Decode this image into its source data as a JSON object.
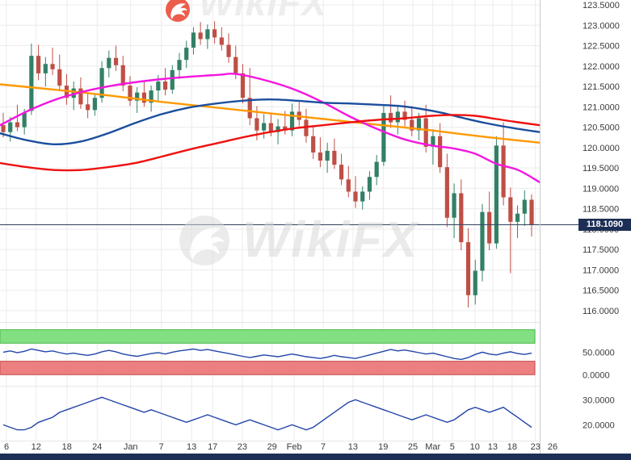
{
  "watermark": {
    "brand": "WikiFX",
    "top_text": "WikiFX",
    "logo_color_top": "#e8432e",
    "logo_color_center": "#d9d9d9"
  },
  "current_price": {
    "value": "118.1090",
    "price": 118.109,
    "bg": "#1d2f55",
    "line_color": "#3a4a66"
  },
  "chrome": {
    "bottom_bar_color": "#1d2f55",
    "grid_color": "#ececec",
    "axis_text_color": "#3a3a3a",
    "axis_border_color": "#c9c9c9"
  },
  "price_axis": {
    "labels": [
      "123.5000",
      "123.0000",
      "122.5000",
      "122.0000",
      "121.5000",
      "121.0000",
      "120.5000",
      "120.0000",
      "119.5000",
      "119.0000",
      "118.5000",
      "118.0000",
      "117.5000",
      "117.0000",
      "116.5000",
      "116.0000"
    ]
  },
  "x_axis": {
    "labels": [
      {
        "t": "6",
        "f": 0.012
      },
      {
        "t": "12",
        "f": 0.067
      },
      {
        "t": "18",
        "f": 0.124
      },
      {
        "t": "24",
        "f": 0.18
      },
      {
        "t": "Jan",
        "f": 0.242
      },
      {
        "t": "7",
        "f": 0.299
      },
      {
        "t": "13",
        "f": 0.355
      },
      {
        "t": "17",
        "f": 0.394
      },
      {
        "t": "23",
        "f": 0.449
      },
      {
        "t": "29",
        "f": 0.504
      },
      {
        "t": "Feb",
        "f": 0.545
      },
      {
        "t": "7",
        "f": 0.599
      },
      {
        "t": "13",
        "f": 0.654
      },
      {
        "t": "19",
        "f": 0.71
      },
      {
        "t": "25",
        "f": 0.765
      },
      {
        "t": "Mar",
        "f": 0.802
      },
      {
        "t": "5",
        "f": 0.838
      },
      {
        "t": "10",
        "f": 0.88
      },
      {
        "t": "13",
        "f": 0.913
      },
      {
        "t": "18",
        "f": 0.949
      },
      {
        "t": "23",
        "f": 0.992
      },
      {
        "t": "26",
        "f": 1.024
      }
    ]
  },
  "chart_data": [
    {
      "type": "candlestick",
      "title": "",
      "ylim": [
        116.0,
        123.5
      ],
      "grid_step": 0.5,
      "up_color": "#338066",
      "down_color": "#bf4f45",
      "last_price": 118.109,
      "candles": [
        [
          120.55,
          120.85,
          120.25,
          120.38
        ],
        [
          120.38,
          120.75,
          120.15,
          120.62
        ],
        [
          120.62,
          121.05,
          120.4,
          120.5
        ],
        [
          120.5,
          120.95,
          120.32,
          120.85
        ],
        [
          120.9,
          122.55,
          120.8,
          122.25
        ],
        [
          122.25,
          122.52,
          121.65,
          121.82
        ],
        [
          121.82,
          122.22,
          121.5,
          122.05
        ],
        [
          122.05,
          122.45,
          121.78,
          121.92
        ],
        [
          121.92,
          122.28,
          121.38,
          121.52
        ],
        [
          121.52,
          121.8,
          121.05,
          121.22
        ],
        [
          121.22,
          121.62,
          120.92,
          121.45
        ],
        [
          121.45,
          121.72,
          120.95,
          121.06
        ],
        [
          121.06,
          121.35,
          120.72,
          120.92
        ],
        [
          120.92,
          121.32,
          120.78,
          121.22
        ],
        [
          121.22,
          122.12,
          121.1,
          121.95
        ],
        [
          121.95,
          122.38,
          121.72,
          122.2
        ],
        [
          122.2,
          122.5,
          121.88,
          122.02
        ],
        [
          122.02,
          122.25,
          121.38,
          121.52
        ],
        [
          121.52,
          121.75,
          121.02,
          121.15
        ],
        [
          121.15,
          121.48,
          120.85,
          121.35
        ],
        [
          121.35,
          121.65,
          121.0,
          121.1
        ],
        [
          121.1,
          121.52,
          120.88,
          121.4
        ],
        [
          121.4,
          121.78,
          121.15,
          121.62
        ],
        [
          121.62,
          121.95,
          121.28,
          121.42
        ],
        [
          121.42,
          122.02,
          121.32,
          121.9
        ],
        [
          121.9,
          122.32,
          121.68,
          122.15
        ],
        [
          122.15,
          122.62,
          121.95,
          122.45
        ],
        [
          122.45,
          122.95,
          122.28,
          122.82
        ],
        [
          122.82,
          123.08,
          122.52,
          122.66
        ],
        [
          122.66,
          123.02,
          122.42,
          122.9
        ],
        [
          122.9,
          123.1,
          122.55,
          122.7
        ],
        [
          122.7,
          122.95,
          122.38,
          122.52
        ],
        [
          122.52,
          122.8,
          122.08,
          122.22
        ],
        [
          122.22,
          122.5,
          121.68,
          121.82
        ],
        [
          121.82,
          122.05,
          121.08,
          121.22
        ],
        [
          121.22,
          121.95,
          120.55,
          120.72
        ],
        [
          120.72,
          121.02,
          120.18,
          120.42
        ],
        [
          120.42,
          120.82,
          120.22,
          120.6
        ],
        [
          120.6,
          120.85,
          120.28,
          120.38
        ],
        [
          120.38,
          120.7,
          120.08,
          120.52
        ],
        [
          120.52,
          120.9,
          120.32,
          120.42
        ],
        [
          120.42,
          121.08,
          120.28,
          120.88
        ],
        [
          120.88,
          121.15,
          120.52,
          120.68
        ],
        [
          120.68,
          120.95,
          120.12,
          120.28
        ],
        [
          120.28,
          120.55,
          119.72,
          119.88
        ],
        [
          119.88,
          120.25,
          119.52,
          119.68
        ],
        [
          119.68,
          120.12,
          119.38,
          119.92
        ],
        [
          119.92,
          120.22,
          119.48,
          119.58
        ],
        [
          119.58,
          119.85,
          119.08,
          119.22
        ],
        [
          119.22,
          119.55,
          118.78,
          118.92
        ],
        [
          118.92,
          119.3,
          118.52,
          118.68
        ],
        [
          118.68,
          119.05,
          118.48,
          118.92
        ],
        [
          118.92,
          119.42,
          118.72,
          119.28
        ],
        [
          119.28,
          119.82,
          119.08,
          119.65
        ],
        [
          119.65,
          121.02,
          119.55,
          120.85
        ],
        [
          120.85,
          121.28,
          120.48,
          120.62
        ],
        [
          120.62,
          121.05,
          120.32,
          120.88
        ],
        [
          120.88,
          121.15,
          120.52,
          120.68
        ],
        [
          120.68,
          121.02,
          120.28,
          120.42
        ],
        [
          120.42,
          120.85,
          120.18,
          120.72
        ],
        [
          120.72,
          121.05,
          119.88,
          120.02
        ],
        [
          120.02,
          120.45,
          119.58,
          120.28
        ],
        [
          120.28,
          120.6,
          119.38,
          119.52
        ],
        [
          119.52,
          119.85,
          118.05,
          118.28
        ],
        [
          118.28,
          119.12,
          117.78,
          118.88
        ],
        [
          118.88,
          119.22,
          117.48,
          117.68
        ],
        [
          117.68,
          118.02,
          116.08,
          116.38
        ],
        [
          116.38,
          117.25,
          116.15,
          116.98
        ],
        [
          116.98,
          118.62,
          116.72,
          118.42
        ],
        [
          118.42,
          118.92,
          117.48,
          117.65
        ],
        [
          117.65,
          120.28,
          117.52,
          120.05
        ],
        [
          120.05,
          120.62,
          118.58,
          118.78
        ],
        [
          118.78,
          119.02,
          116.92,
          118.18
        ],
        [
          118.18,
          118.58,
          117.78,
          118.38
        ],
        [
          118.38,
          118.95,
          118.08,
          118.72
        ],
        [
          118.72,
          118.85,
          117.82,
          118.11
        ]
      ],
      "overlays": [
        {
          "name": "ma-orange",
          "color": "#ff9900",
          "points": [
            [
              0,
              121.55
            ],
            [
              0.1,
              121.42
            ],
            [
              0.2,
              121.28
            ],
            [
              0.3,
              121.12
            ],
            [
              0.4,
              120.98
            ],
            [
              0.5,
              120.84
            ],
            [
              0.6,
              120.7
            ],
            [
              0.7,
              120.56
            ],
            [
              0.8,
              120.42
            ],
            [
              0.9,
              120.26
            ],
            [
              1.0,
              120.12
            ]
          ]
        },
        {
          "name": "ma-magenta",
          "color": "#f516e0",
          "points": [
            [
              0,
              120.55
            ],
            [
              0.06,
              120.95
            ],
            [
              0.12,
              121.25
            ],
            [
              0.2,
              121.5
            ],
            [
              0.3,
              121.68
            ],
            [
              0.4,
              121.78
            ],
            [
              0.44,
              121.8
            ],
            [
              0.5,
              121.62
            ],
            [
              0.55,
              121.4
            ],
            [
              0.6,
              121.1
            ],
            [
              0.65,
              120.75
            ],
            [
              0.7,
              120.45
            ],
            [
              0.75,
              120.2
            ],
            [
              0.8,
              120.05
            ],
            [
              0.84,
              119.98
            ],
            [
              0.88,
              119.85
            ],
            [
              0.92,
              119.6
            ],
            [
              0.96,
              119.45
            ],
            [
              1.0,
              119.15
            ]
          ]
        },
        {
          "name": "ma-blue",
          "color": "#1a4e9e",
          "points": [
            [
              0,
              120.35
            ],
            [
              0.05,
              120.18
            ],
            [
              0.1,
              120.08
            ],
            [
              0.15,
              120.15
            ],
            [
              0.2,
              120.35
            ],
            [
              0.25,
              120.6
            ],
            [
              0.3,
              120.82
            ],
            [
              0.35,
              120.98
            ],
            [
              0.4,
              121.08
            ],
            [
              0.45,
              121.15
            ],
            [
              0.5,
              121.18
            ],
            [
              0.55,
              121.15
            ],
            [
              0.6,
              121.1
            ],
            [
              0.65,
              121.08
            ],
            [
              0.7,
              121.05
            ],
            [
              0.74,
              121.02
            ],
            [
              0.78,
              120.95
            ],
            [
              0.82,
              120.85
            ],
            [
              0.86,
              120.72
            ],
            [
              0.9,
              120.6
            ],
            [
              0.95,
              120.48
            ],
            [
              1.0,
              120.38
            ]
          ]
        },
        {
          "name": "ma-red",
          "color": "#ee1111",
          "points": [
            [
              0,
              119.62
            ],
            [
              0.05,
              119.52
            ],
            [
              0.1,
              119.45
            ],
            [
              0.15,
              119.45
            ],
            [
              0.2,
              119.52
            ],
            [
              0.25,
              119.62
            ],
            [
              0.3,
              119.78
            ],
            [
              0.35,
              119.95
            ],
            [
              0.4,
              120.1
            ],
            [
              0.45,
              120.25
            ],
            [
              0.5,
              120.38
            ],
            [
              0.55,
              120.48
            ],
            [
              0.6,
              120.55
            ],
            [
              0.65,
              120.62
            ],
            [
              0.7,
              120.68
            ],
            [
              0.75,
              120.72
            ],
            [
              0.8,
              120.78
            ],
            [
              0.84,
              120.8
            ],
            [
              0.88,
              120.78
            ],
            [
              0.92,
              120.7
            ],
            [
              0.96,
              120.62
            ],
            [
              1.0,
              120.55
            ]
          ]
        }
      ]
    },
    {
      "type": "line",
      "name": "rsi-indicator",
      "ylim": [
        -12,
        110
      ],
      "line_color": "#2244aa",
      "bands": [
        {
          "from": 70,
          "to": 100,
          "color": "#82e082",
          "edge": "#49b849"
        },
        {
          "from": 0,
          "to": 30,
          "color": "#ec7f7f",
          "edge": "#c85050"
        }
      ],
      "ticks": [
        {
          "v": 50,
          "label": "50.0000"
        },
        {
          "v": 0,
          "label": "0.0000"
        }
      ],
      "values": [
        50,
        53,
        49,
        52,
        57,
        54,
        51,
        53,
        49,
        46,
        48,
        45,
        43,
        46,
        51,
        54,
        51,
        46,
        43,
        41,
        44,
        47,
        49,
        46,
        50,
        53,
        55,
        57,
        54,
        56,
        53,
        50,
        47,
        44,
        41,
        38,
        41,
        44,
        42,
        40,
        43,
        46,
        43,
        40,
        38,
        36,
        39,
        43,
        40,
        38,
        36,
        40,
        44,
        48,
        52,
        56,
        53,
        55,
        52,
        49,
        46,
        48,
        44,
        40,
        36,
        34,
        38,
        45,
        50,
        46,
        44,
        48,
        51,
        47,
        45,
        48
      ]
    },
    {
      "type": "line",
      "name": "oscillator-indicator",
      "ylim": [
        14,
        34
      ],
      "line_color": "#2244aa",
      "ticks": [
        {
          "v": 30,
          "label": "30.0000"
        },
        {
          "v": 20,
          "label": "20.0000"
        }
      ],
      "values": [
        20,
        19,
        18,
        18,
        19,
        21,
        22,
        23,
        25,
        26,
        27,
        28,
        29,
        30,
        31,
        30,
        29,
        28,
        27,
        26,
        25,
        26,
        25,
        24,
        23,
        22,
        21,
        22,
        23,
        24,
        23,
        22,
        21,
        20,
        21,
        22,
        21,
        20,
        19,
        18,
        19,
        20,
        19,
        18,
        19,
        21,
        23,
        25,
        27,
        29,
        30,
        29,
        28,
        27,
        26,
        25,
        24,
        23,
        22,
        23,
        24,
        23,
        22,
        21,
        22,
        24,
        26,
        27,
        26,
        25,
        26,
        27,
        25,
        23,
        21,
        19
      ]
    }
  ]
}
